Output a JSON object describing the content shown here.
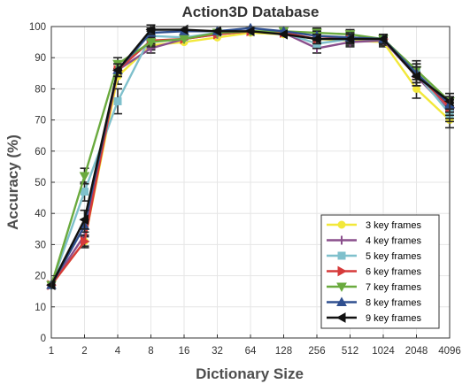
{
  "chart_data": {
    "type": "line",
    "title": "Action3D Database",
    "xlabel": "Dictionary Size",
    "ylabel": "Accuracy (%)",
    "categories": [
      "1",
      "2",
      "4",
      "8",
      "16",
      "32",
      "64",
      "128",
      "256",
      "512",
      "1024",
      "2048",
      "4096"
    ],
    "yticks": [
      "0",
      "10",
      "20",
      "30",
      "40",
      "50",
      "60",
      "70",
      "80",
      "90",
      "100"
    ],
    "ylim": [
      0,
      100
    ],
    "grid": true,
    "legend_position": "bottom-right",
    "series": [
      {
        "name": "3 key frames",
        "color": "#f2e83a",
        "marker": "circle",
        "values": [
          17,
          31,
          84,
          94,
          95,
          96.5,
          98,
          97.5,
          96,
          95.5,
          95,
          80,
          70
        ],
        "errors": [
          0.8,
          1.5,
          2.5,
          1.5,
          1,
          1,
          0.5,
          0.8,
          1.5,
          1.5,
          1.5,
          3,
          2.5
        ]
      },
      {
        "name": "4 key frames",
        "color": "#8a4f8c",
        "marker": "plus",
        "values": [
          17,
          33,
          86,
          93,
          96,
          97.5,
          98.5,
          98,
          93,
          95,
          95.5,
          84,
          73
        ],
        "errors": [
          0.8,
          2,
          2,
          1.5,
          1,
          0.8,
          0.5,
          0.8,
          1.5,
          1.5,
          1.5,
          3,
          2.5
        ]
      },
      {
        "name": "5 key frames",
        "color": "#7fc0cc",
        "marker": "square",
        "values": [
          17,
          47,
          76,
          97,
          96.5,
          98,
          98.5,
          98,
          94.5,
          96,
          96,
          85,
          72
        ],
        "errors": [
          0.8,
          3,
          4,
          1.5,
          1,
          0.8,
          0.5,
          0.8,
          1.5,
          1.5,
          1.5,
          3,
          2.5
        ]
      },
      {
        "name": "6 key frames",
        "color": "#d63a3a",
        "marker": "triangle-right",
        "values": [
          17,
          31,
          86,
          95.5,
          96,
          97.5,
          98.5,
          98,
          96,
          96.5,
          96,
          85,
          74
        ],
        "errors": [
          0.8,
          2,
          2,
          1.5,
          1,
          0.8,
          0.5,
          0.8,
          1.5,
          1.5,
          1.5,
          3,
          2.5
        ]
      },
      {
        "name": "7 key frames",
        "color": "#6aaa3e",
        "marker": "triangle-down",
        "values": [
          17,
          52,
          88,
          95,
          96,
          98,
          98.5,
          98.5,
          98,
          97.5,
          96,
          86,
          76
        ],
        "errors": [
          0.8,
          2.5,
          2,
          1.5,
          1,
          0.8,
          0.5,
          0.8,
          1.5,
          1.5,
          1.5,
          3,
          2.5
        ]
      },
      {
        "name": "8 key frames",
        "color": "#2f4f8f",
        "marker": "triangle-up",
        "values": [
          17,
          36,
          86,
          98,
          98.5,
          98.5,
          99.5,
          98.5,
          97,
          96.5,
          96,
          85,
          75
        ],
        "errors": [
          0.8,
          2,
          2,
          1.5,
          1,
          0.8,
          0.5,
          0.8,
          1.5,
          1.5,
          1.5,
          3,
          2.5
        ]
      },
      {
        "name": "9 key frames",
        "color": "#111111",
        "marker": "triangle-left",
        "values": [
          17,
          38,
          86,
          99,
          99,
          98.5,
          98.5,
          97.5,
          96,
          96,
          96,
          84,
          76
        ],
        "errors": [
          0.8,
          3,
          2,
          1.5,
          1,
          0.8,
          0.5,
          0.8,
          1.5,
          1.5,
          1.5,
          3,
          2.5
        ]
      }
    ]
  }
}
